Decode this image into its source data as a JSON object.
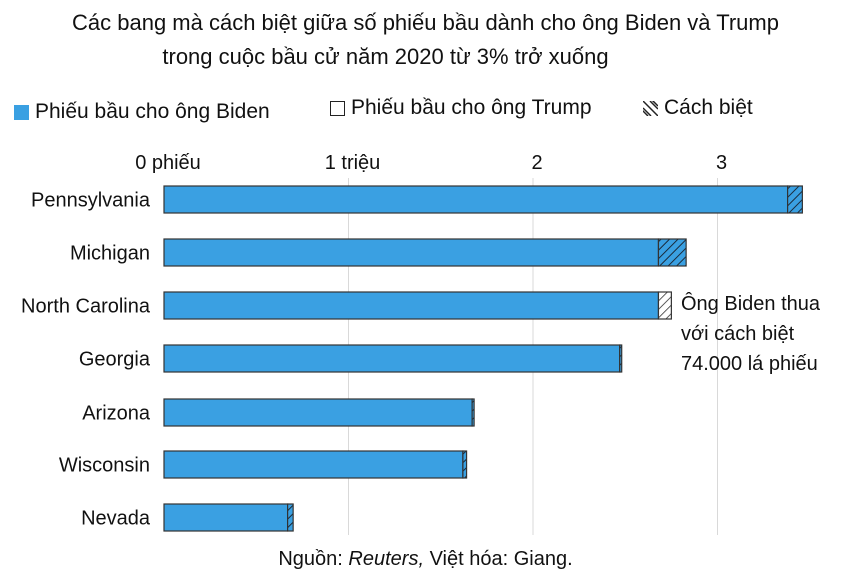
{
  "title": {
    "line1": "Các bang mà cách biệt giữa số phiếu bầu dành cho ông Biden và Trump",
    "line2": "trong cuộc bầu cử năm 2020 từ 3% trở xuống"
  },
  "legend": {
    "biden": "Phiếu bầu cho ông Biden",
    "trump": "Phiếu bầu cho ông Trump",
    "margin": "Cách biệt"
  },
  "annotation": [
    "Ông Biden thua",
    "với cách biệt",
    "74.000 lá phiếu"
  ],
  "source": {
    "prefix": "Nguồn: ",
    "name": "Reuters,",
    "suffix": " Việt hóa: Giang."
  },
  "colors": {
    "biden": "#3aa0e2",
    "trump": "#ffffff",
    "grid": "#d9d9d9",
    "border": "#333333"
  },
  "chart_data": {
    "type": "bar",
    "orientation": "horizontal",
    "stacked": true,
    "title": "Các bang mà cách biệt giữa số phiếu bầu dành cho ông Biden và Trump trong cuộc bầu cử năm 2020 từ 3% trở xuống",
    "categories": [
      "Pennsylvania",
      "Michigan",
      "North Carolina",
      "Georgia",
      "Arizona",
      "Wisconsin",
      "Nevada"
    ],
    "x_tick_values": [
      0,
      1,
      2,
      3
    ],
    "x_tick_labels": [
      "0 phiếu",
      "1 triệu",
      "2",
      "3"
    ],
    "x_unit": "triệu phiếu",
    "xlim": [
      0,
      3.6
    ],
    "grid": true,
    "legend_position": "top",
    "series": [
      {
        "name": "Phiếu bầu cho ông Biden",
        "values": [
          3.38,
          2.68,
          2.68,
          2.47,
          1.67,
          1.62,
          0.67
        ]
      },
      {
        "name": "Cách biệt",
        "values": [
          0.08,
          0.15,
          0.07,
          0.01,
          0.01,
          0.02,
          0.03
        ]
      }
    ]
  }
}
